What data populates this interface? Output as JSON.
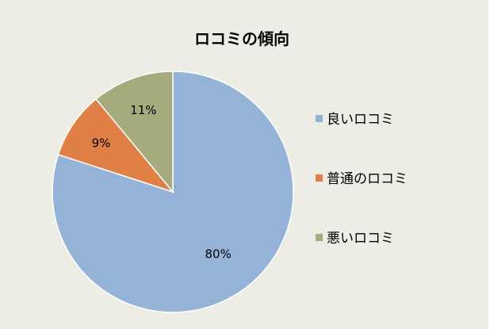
{
  "chart_data": {
    "type": "pie",
    "title": "ロコミの傾向",
    "categories": [
      "良いロコミ",
      "普通のロコミ",
      "悪いロコミ"
    ],
    "values": [
      80,
      9,
      11
    ],
    "labels": [
      "80%",
      "9%",
      "11%"
    ],
    "colors": [
      "#95b3d6",
      "#e07f46",
      "#a6ab7d"
    ],
    "start_angle": "12 o'clock",
    "direction": "clockwise",
    "legend": {
      "position": "right",
      "items": [
        {
          "label": "良いロコミ",
          "color": "#95b3d6"
        },
        {
          "label": "普通のロコミ",
          "color": "#e07f46"
        },
        {
          "label": "悪いロコミ",
          "color": "#a6ab7d"
        }
      ]
    }
  }
}
